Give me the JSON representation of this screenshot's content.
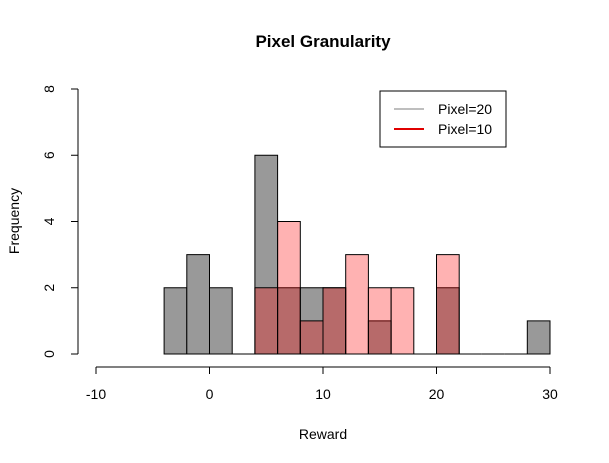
{
  "chart_data": {
    "type": "bar",
    "title": "Pixel Granularity",
    "xlabel": "Reward",
    "ylabel": "Frequency",
    "xlim": [
      -10,
      30
    ],
    "ylim": [
      0,
      8
    ],
    "xticks": [
      "-10",
      "0",
      "10",
      "20",
      "30"
    ],
    "yticks": [
      "0",
      "2",
      "4",
      "6",
      "8"
    ],
    "bin_width": 2,
    "legend": {
      "placement": "top-right",
      "entries": [
        "Pixel=20",
        "Pixel=10"
      ]
    },
    "series": [
      {
        "name": "Pixel=20",
        "fill": "#999999",
        "legend_color": "#bebebe",
        "bins": [
          {
            "x0": -4,
            "x1": -2,
            "count": 2
          },
          {
            "x0": -2,
            "x1": 0,
            "count": 3
          },
          {
            "x0": 0,
            "x1": 2,
            "count": 2
          },
          {
            "x0": 4,
            "x1": 6,
            "count": 6
          },
          {
            "x0": 6,
            "x1": 8,
            "count": 2
          },
          {
            "x0": 8,
            "x1": 10,
            "count": 2
          },
          {
            "x0": 10,
            "x1": 12,
            "count": 2
          },
          {
            "x0": 14,
            "x1": 16,
            "count": 1
          },
          {
            "x0": 20,
            "x1": 22,
            "count": 2
          },
          {
            "x0": 28,
            "x1": 30,
            "count": 1
          }
        ],
        "zero_bins": [
          [
            2,
            4
          ],
          [
            12,
            14
          ],
          [
            16,
            18
          ],
          [
            18,
            20
          ],
          [
            22,
            24
          ],
          [
            24,
            26
          ],
          [
            26,
            28
          ]
        ]
      },
      {
        "name": "Pixel=10",
        "fill": "rgba(255,0,0,0.3)",
        "legend_color": "#e00000",
        "bins": [
          {
            "x0": 4,
            "x1": 6,
            "count": 2
          },
          {
            "x0": 6,
            "x1": 8,
            "count": 4
          },
          {
            "x0": 8,
            "x1": 10,
            "count": 1
          },
          {
            "x0": 10,
            "x1": 12,
            "count": 2
          },
          {
            "x0": 12,
            "x1": 14,
            "count": 3
          },
          {
            "x0": 14,
            "x1": 16,
            "count": 2
          },
          {
            "x0": 16,
            "x1": 18,
            "count": 2
          },
          {
            "x0": 20,
            "x1": 22,
            "count": 3
          }
        ],
        "zero_bins": [
          [
            18,
            20
          ]
        ]
      }
    ]
  }
}
